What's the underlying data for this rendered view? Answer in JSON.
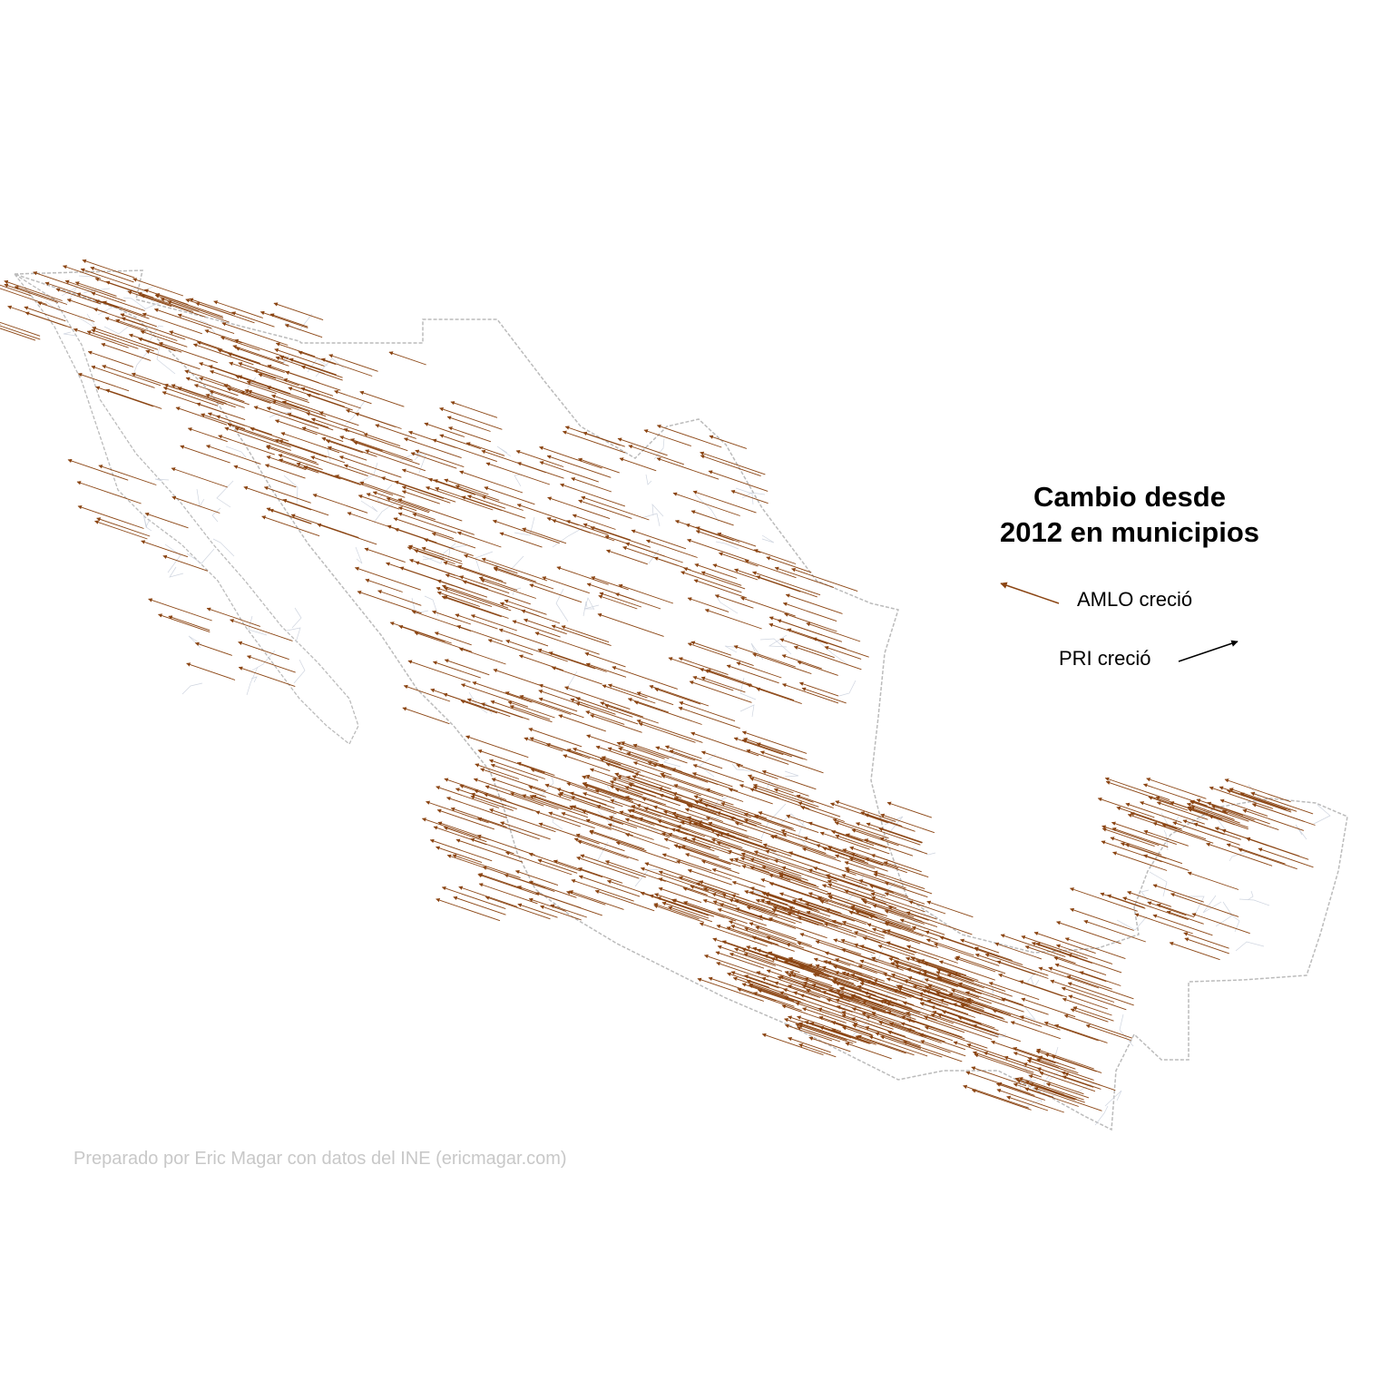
{
  "map": {
    "title_line1": "Cambio desde",
    "title_line2": "2012 en municipios",
    "legend": {
      "amlo_label": "AMLO creció",
      "pri_label": "PRI creció",
      "amlo_color": "#8B4513",
      "pri_color": "#000000"
    },
    "credit": "Preparado por Eric Magar con datos del INE (ericmagar.com)",
    "colors": {
      "border_state": "#bbbbbb",
      "border_municipal": "#cfd5e0"
    }
  }
}
